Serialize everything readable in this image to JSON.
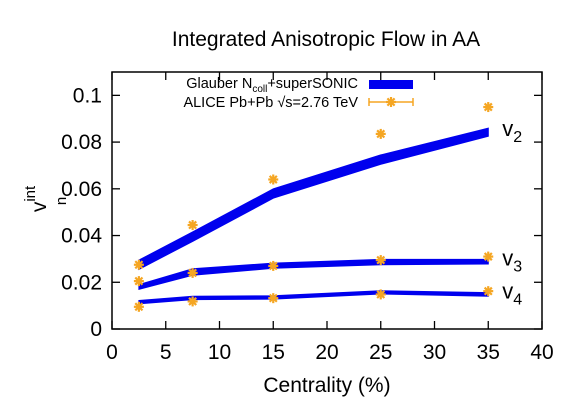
{
  "chart_data": {
    "type": "line",
    "title": "Integrated Anisotropic Flow in AA",
    "xlabel": "Centrality (%)",
    "ylabel": {
      "main": "v",
      "sub": "n",
      "sup": "int"
    },
    "xlim": [
      0,
      40
    ],
    "ylim": [
      0,
      0.11
    ],
    "xticks": [
      0,
      5,
      10,
      15,
      20,
      25,
      30,
      35,
      40
    ],
    "yticks": [
      0,
      0.02,
      0.04,
      0.06,
      0.08,
      0.1
    ],
    "xtick_labels": [
      "0",
      "5",
      "10",
      "15",
      "20",
      "25",
      "30",
      "35",
      "40"
    ],
    "ytick_labels": [
      "0",
      "0.02",
      "0.04",
      "0.06",
      "0.08",
      "0.1"
    ],
    "grid": false,
    "legend_position": "top-left",
    "legend": {
      "model": {
        "pre": "Glauber N",
        "sub": "coll",
        "post": "+superSONIC"
      },
      "data": "ALICE Pb+Pb √s=2.76 TeV"
    },
    "colors": {
      "model": "#0000ee",
      "data": "#f5a623"
    },
    "series": [
      {
        "kind": "model",
        "label": {
          "main": "v",
          "sub": "2"
        },
        "x": [
          2.5,
          7.5,
          15,
          25,
          35
        ],
        "lower": [
          0.0255,
          0.0375,
          0.056,
          0.0705,
          0.0825
        ],
        "upper": [
          0.0295,
          0.0415,
          0.06,
          0.0745,
          0.086
        ]
      },
      {
        "kind": "model",
        "label": {
          "main": "v",
          "sub": "3"
        },
        "x": [
          2.5,
          7.5,
          15,
          25,
          35
        ],
        "lower": [
          0.017,
          0.023,
          0.026,
          0.0275,
          0.0278
        ],
        "upper": [
          0.019,
          0.0258,
          0.0282,
          0.0298,
          0.0298
        ]
      },
      {
        "kind": "model",
        "label": {
          "main": "v",
          "sub": "4"
        },
        "x": [
          2.5,
          7.5,
          15,
          25,
          35
        ],
        "lower": [
          0.0108,
          0.0126,
          0.0128,
          0.015,
          0.014
        ],
        "upper": [
          0.0122,
          0.014,
          0.0142,
          0.0164,
          0.0156
        ]
      },
      {
        "kind": "data",
        "name": "ALICE v2",
        "x": [
          2.5,
          7.5,
          15,
          25,
          35
        ],
        "values": [
          0.0275,
          0.0445,
          0.064,
          0.0835,
          0.095
        ]
      },
      {
        "kind": "data",
        "name": "ALICE v3",
        "x": [
          2.5,
          7.5,
          15,
          25,
          35
        ],
        "values": [
          0.0205,
          0.024,
          0.027,
          0.0295,
          0.031
        ]
      },
      {
        "kind": "data",
        "name": "ALICE v4",
        "x": [
          2.5,
          7.5,
          15,
          25,
          35
        ],
        "values": [
          0.0095,
          0.0118,
          0.0132,
          0.0148,
          0.0162
        ]
      }
    ]
  }
}
